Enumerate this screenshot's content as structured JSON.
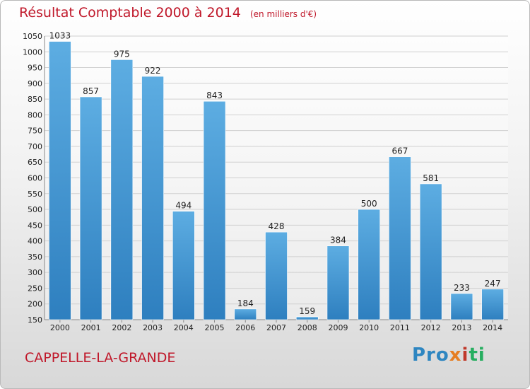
{
  "header": {
    "title": "Résultat Comptable 2000 à 2014",
    "subtitle": "(en milliers d'€)"
  },
  "footer": {
    "commune": "CAPPELLE-LA-GRANDE",
    "logo": {
      "p1": "Pro",
      "p2": "x",
      "p3": "i",
      "p4": "ti"
    }
  },
  "colors": {
    "bar_light": "#5dade2",
    "bar_dark": "#2e7fbf",
    "title": "#c0182a",
    "grid": "#d0d0d0"
  },
  "chart_data": {
    "type": "bar",
    "title": "Résultat Comptable 2000 à 2014",
    "subtitle": "(en milliers d'€)",
    "xlabel": "",
    "ylabel": "",
    "ylim": [
      150,
      1050
    ],
    "yticks": [
      150,
      200,
      250,
      300,
      350,
      400,
      450,
      500,
      550,
      600,
      650,
      700,
      750,
      800,
      850,
      900,
      950,
      1000,
      1050
    ],
    "grid": true,
    "categories": [
      "2000",
      "2001",
      "2002",
      "2003",
      "2004",
      "2005",
      "2006",
      "2007",
      "2008",
      "2009",
      "2010",
      "2011",
      "2012",
      "2013",
      "2014"
    ],
    "values": [
      1033,
      857,
      975,
      922,
      494,
      843,
      184,
      428,
      159,
      384,
      500,
      667,
      581,
      233,
      247
    ]
  }
}
